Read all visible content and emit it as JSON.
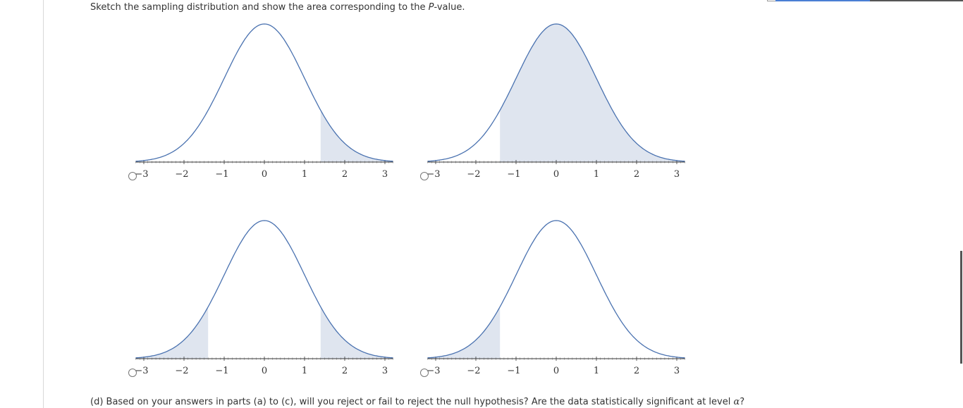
{
  "prompt": {
    "before_italic": "Sketch the sampling distribution and show the area corresponding to the ",
    "italic": "P",
    "after_italic": "-value."
  },
  "options": [
    {
      "id": "a",
      "shade": [
        [
          1.4,
          3.2
        ]
      ]
    },
    {
      "id": "b",
      "shade": [
        [
          -1.4,
          3.2
        ]
      ]
    },
    {
      "id": "c",
      "shade": [
        [
          -3.2,
          -1.4
        ],
        [
          1.4,
          3.2
        ]
      ]
    },
    {
      "id": "d",
      "shade": [
        [
          -3.2,
          -1.4
        ]
      ]
    }
  ],
  "axis": {
    "major_ticks": [
      -3,
      -2,
      -1,
      0,
      1,
      2,
      3
    ],
    "tick_labels": [
      "−3",
      "−2",
      "−1",
      "0",
      "1",
      "2",
      "3"
    ],
    "range": [
      -3.2,
      3.2
    ]
  },
  "colors": {
    "curve": "#4a72b0",
    "shade": "#dfe5ef",
    "axis": "#333333"
  },
  "part_d": {
    "text": "(d) Based on your answers in parts (a) to (c), will you reject or fail to reject the null hypothesis? Are the data statistically significant at level ",
    "alpha": "α",
    "end": "?"
  }
}
